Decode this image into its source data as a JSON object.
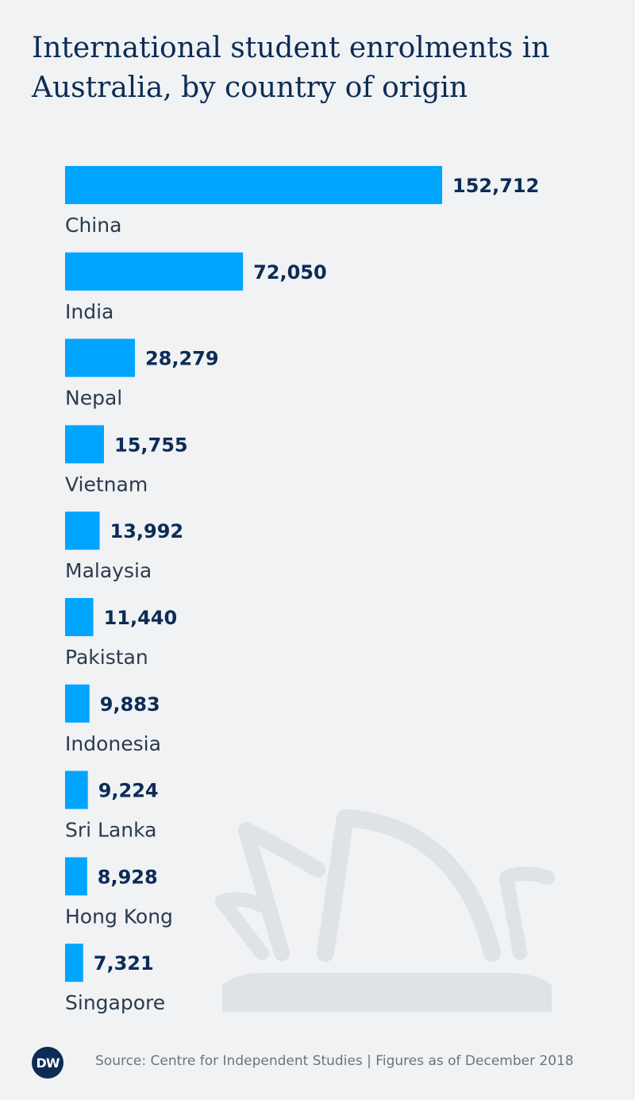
{
  "title": "International student enrolments in Australia, by country of origin",
  "colors": {
    "bar": "#00a5ff",
    "value_text": "#0c2c55",
    "category_text": "#2b3b4c",
    "background": "#f0f2f4",
    "watermark": "#dfe2e6"
  },
  "chart_data": {
    "type": "bar",
    "orientation": "horizontal",
    "title": "International student enrolments in Australia, by country of origin",
    "categories": [
      "China",
      "India",
      "Nepal",
      "Vietnam",
      "Malaysia",
      "Pakistan",
      "Indonesia",
      "Sri Lanka",
      "Hong Kong",
      "Singapore"
    ],
    "values": [
      152712,
      72050,
      28279,
      15755,
      13992,
      11440,
      9883,
      9224,
      8928,
      7321
    ],
    "value_labels": [
      "152,712",
      "72,050",
      "28,279",
      "15,755",
      "13,992",
      "11,440",
      "9,883",
      "9,224",
      "8,928",
      "7,321"
    ],
    "xlim": [
      0,
      152712
    ],
    "grid": false,
    "legend": "none"
  },
  "footer": {
    "logo_text": "DW",
    "source": "Source: Centre for Independent Studies | Figures as of December 2018"
  },
  "watermark_icon": "sydney-opera-house-icon"
}
